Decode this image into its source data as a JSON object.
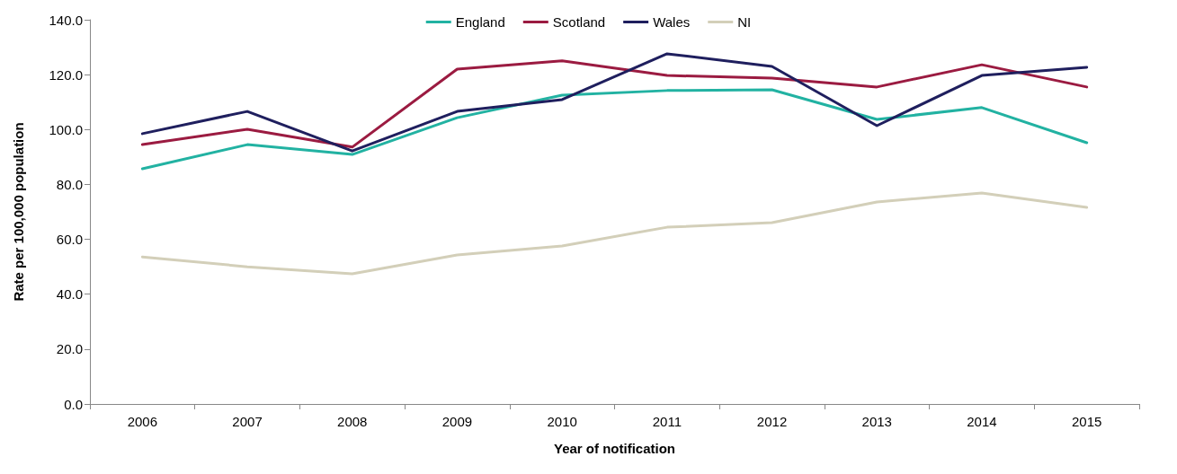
{
  "chart_data": {
    "type": "line",
    "xlabel": "Year of notification",
    "ylabel": "Rate per 100,000 population",
    "categories": [
      "2006",
      "2007",
      "2008",
      "2009",
      "2010",
      "2011",
      "2012",
      "2013",
      "2014",
      "2015"
    ],
    "series": [
      {
        "name": "England",
        "color": "#22b2a2",
        "values": [
          85.7,
          94.5,
          90.9,
          104.3,
          112.5,
          114.2,
          114.5,
          103.7,
          108.0,
          95.2
        ]
      },
      {
        "name": "Scotland",
        "color": "#9b1b41",
        "values": [
          94.5,
          100.1,
          93.6,
          122.0,
          125.0,
          119.7,
          118.7,
          115.5,
          123.6,
          115.5
        ]
      },
      {
        "name": "Wales",
        "color": "#1f1f5e",
        "values": [
          98.5,
          106.6,
          92.2,
          106.6,
          110.9,
          127.6,
          123.0,
          101.4,
          119.7,
          122.7
        ]
      },
      {
        "name": "NI",
        "color": "#d3cfb9",
        "values": [
          53.6,
          50.0,
          47.4,
          54.3,
          57.6,
          64.4,
          66.1,
          73.6,
          76.9,
          71.6
        ]
      }
    ],
    "ylim": [
      0,
      140
    ],
    "yticks": [
      {
        "value": 0,
        "label": "0.0"
      },
      {
        "value": 20,
        "label": "20.0"
      },
      {
        "value": 40,
        "label": "40.0"
      },
      {
        "value": 60,
        "label": "60.0"
      },
      {
        "value": 80,
        "label": "80.0"
      },
      {
        "value": 100,
        "label": "100.0"
      },
      {
        "value": 120,
        "label": "120.0"
      },
      {
        "value": 140,
        "label": "140.0"
      }
    ],
    "grid": false,
    "legend": "top",
    "marker": "none",
    "line_style": "solid"
  }
}
